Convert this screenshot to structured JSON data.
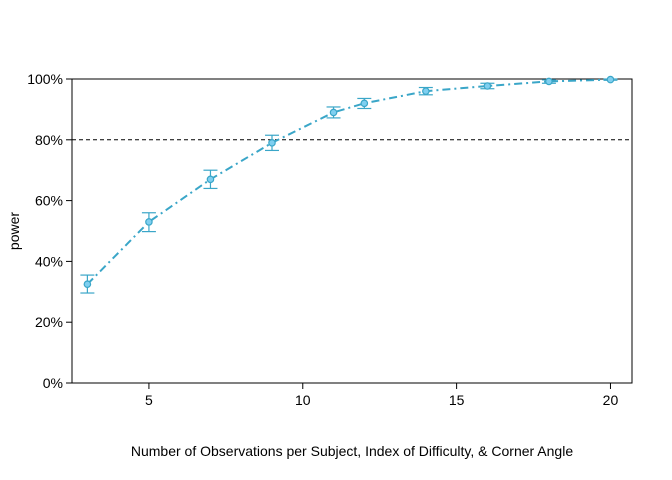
{
  "chart_data": {
    "type": "line",
    "xlabel": "Number of Observations per Subject, Index of Difficulty, & Corner Angle",
    "ylabel": "power",
    "xlim": [
      2.5,
      20.7
    ],
    "ylim": [
      0,
      100
    ],
    "x_ticks": [
      5,
      10,
      15,
      20
    ],
    "y_ticks": [
      0,
      20,
      40,
      60,
      80,
      100
    ],
    "y_tick_labels": [
      "0%",
      "20%",
      "40%",
      "60%",
      "80%",
      "100%"
    ],
    "reference_line": 80,
    "grid": false,
    "legend": "none",
    "series_color": "#3aa6c8",
    "series": [
      {
        "x": [
          3,
          5,
          7,
          9,
          11,
          12,
          14,
          16,
          18,
          20
        ],
        "y": [
          32.5,
          53,
          67,
          79,
          89,
          92,
          96,
          97.7,
          99.2,
          99.8
        ],
        "lower": [
          29.6,
          49.8,
          64,
          76.5,
          87.2,
          90.3,
          94.8,
          96.8,
          98.6,
          99.6
        ],
        "upper": [
          35.5,
          56,
          70,
          81.5,
          90.8,
          93.6,
          97.2,
          98.6,
          99.7,
          100
        ]
      }
    ]
  }
}
